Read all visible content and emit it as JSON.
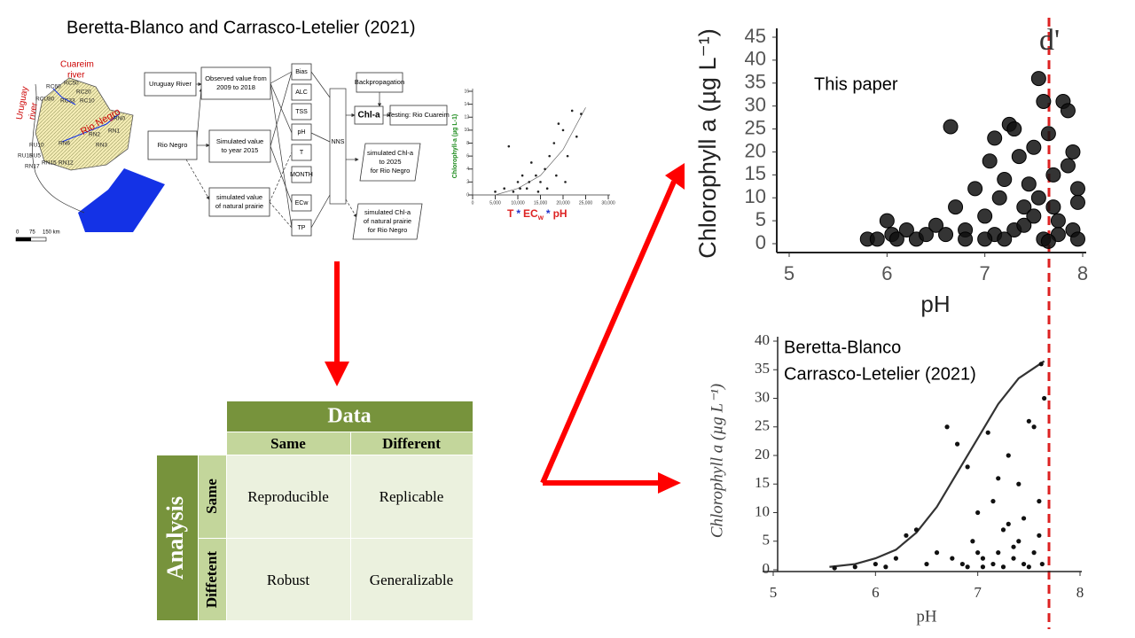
{
  "header": {
    "citation": "Beretta-Blanco and Carrasco-Letelier (2021)"
  },
  "map": {
    "labels": [
      "Cuareim",
      "river",
      "Uruguay",
      "river",
      "Rio Negro",
      "RC60",
      "RC50",
      "RC20",
      "RC10",
      "RC33",
      "RCU80",
      "RN0",
      "RN1",
      "RN2",
      "RN3",
      "RN6",
      "RN12",
      "RN15",
      "RU15",
      "RU10",
      "RU5",
      "RN17"
    ],
    "scale": [
      "0",
      "75",
      "150 km"
    ]
  },
  "flowchart": {
    "nodes": [
      [
        "Uruguay River"
      ],
      [
        "Observed value from",
        "2009 to 2018"
      ],
      [
        "Rio Negro"
      ],
      [
        "Simulated value",
        "to year 2015"
      ],
      [
        "simulated value",
        "of natural prairie"
      ],
      [
        "Backpropagation"
      ],
      [
        "Chl-a"
      ],
      [
        "Testing: Rio Cuareim"
      ],
      [
        "simulated Chl-a",
        "to 2025",
        "for Rio Negro"
      ],
      [
        "simulated Chl-a",
        "of natural prairie",
        "for Rio Negro"
      ]
    ],
    "inputs": [
      "Bias",
      "ALC",
      "TSS",
      "pH",
      "T",
      "MONTH",
      "ECw",
      "TP"
    ],
    "nns": "NNS"
  },
  "mini_chart": {
    "type": "scatter",
    "y_label": "Chlorophyll-a (µg L-1)",
    "x_label": [
      "T",
      "*",
      "EC",
      "w",
      "*",
      "pH"
    ],
    "xlim": [
      0,
      30000
    ],
    "ylim": [
      0,
      16
    ],
    "xticks": [
      0,
      {
        "value": 5000,
        "label": "5,000"
      },
      {
        "value": 10000,
        "label": "10,000"
      },
      {
        "value": 15000,
        "label": "15,000"
      },
      {
        "value": 20000,
        "label": "20,000"
      },
      {
        "value": 25000,
        "label": "25,000"
      },
      {
        "value": 30000,
        "label": "30,000"
      }
    ],
    "yticks": [
      0,
      2,
      4,
      6,
      8,
      10,
      12,
      14,
      16
    ],
    "x": [
      5000,
      7000,
      8000,
      9000,
      10000,
      11000,
      12000,
      13000,
      14000,
      15000,
      16000,
      17000,
      18000,
      19000,
      20000,
      21000,
      22000,
      23000,
      24000,
      10500,
      12500,
      14500,
      16500,
      18500,
      20500
    ],
    "y": [
      0.5,
      1,
      7.5,
      0.5,
      2,
      3,
      1,
      5,
      3,
      2,
      4,
      6,
      8,
      11,
      10,
      6,
      13,
      9,
      12.5,
      1,
      2,
      0.5,
      1,
      3,
      2
    ],
    "curve_x": [
      5000,
      10000,
      15000,
      20000,
      25000
    ],
    "curve_y": [
      0,
      1,
      3,
      7,
      13.5
    ]
  },
  "charts": [
    {
      "type": "scatter",
      "label": "d'",
      "legend": [
        "This paper"
      ],
      "y_label": "Chlorophyll a (µg L⁻¹)",
      "x_label": "pH",
      "xlim": [
        5,
        8
      ],
      "ylim": [
        0,
        45
      ],
      "xticks": [
        5,
        6,
        7,
        8
      ],
      "yticks": [
        0,
        5,
        10,
        15,
        20,
        25,
        30,
        35,
        40,
        45
      ],
      "x": [
        5.8,
        5.9,
        6.0,
        6.05,
        6.1,
        6.2,
        6.3,
        6.4,
        6.5,
        6.6,
        6.65,
        6.7,
        6.8,
        6.9,
        7.0,
        7.05,
        7.1,
        7.15,
        7.2,
        7.25,
        7.3,
        7.35,
        7.4,
        7.45,
        7.5,
        7.55,
        7.6,
        7.65,
        7.7,
        7.75,
        7.8,
        7.85,
        7.9,
        7.95,
        7.7,
        7.5,
        7.3,
        7.1,
        7.6,
        7.9,
        7.85,
        7.95,
        7.2,
        7.4,
        7.0,
        6.8,
        7.75,
        7.55,
        7.65,
        7.95
      ],
      "y": [
        1,
        1,
        5,
        2,
        1,
        3,
        1,
        2,
        4,
        2,
        25.5,
        8,
        3,
        12,
        6,
        18,
        23,
        10,
        14,
        26,
        25,
        19,
        8,
        13,
        21,
        36,
        31,
        24,
        15,
        5,
        31,
        29,
        20,
        12,
        8,
        6,
        3,
        2,
        1,
        3,
        17,
        9,
        1,
        4,
        1,
        1,
        2,
        10,
        0.5,
        1
      ]
    },
    {
      "type": "scatter",
      "legend": [
        "Beretta-Blanco",
        "Carrasco-Letelier (2021)"
      ],
      "y_label": "Chlorophyll a  (µg L⁻¹)",
      "x_label": "pH",
      "xlim": [
        5,
        8
      ],
      "ylim": [
        0,
        40
      ],
      "xticks": [
        5,
        6,
        7,
        8
      ],
      "yticks": [
        0,
        5,
        10,
        15,
        20,
        25,
        30,
        35,
        40
      ],
      "x": [
        5.6,
        5.8,
        6.0,
        6.1,
        6.2,
        6.3,
        6.4,
        6.5,
        6.6,
        6.7,
        6.8,
        6.9,
        6.95,
        7.0,
        7.05,
        7.1,
        7.15,
        7.2,
        7.25,
        7.3,
        7.35,
        7.4,
        7.45,
        7.5,
        7.55,
        7.6,
        7.62,
        7.65,
        7.55,
        7.45,
        7.35,
        7.25,
        7.15,
        7.05,
        6.85,
        6.75,
        7.6,
        7.4,
        7.2,
        7.5,
        7.63,
        7.3,
        7.0,
        6.9
      ],
      "y": [
        0.3,
        0.5,
        1,
        0.5,
        2,
        6,
        7,
        1,
        3,
        25,
        22,
        18,
        5,
        10,
        2,
        24,
        12,
        16,
        7,
        20,
        4,
        15,
        9,
        26,
        25,
        12,
        36,
        30,
        3,
        1,
        2,
        0.5,
        1,
        0.5,
        1,
        2,
        6,
        5,
        3,
        0.5,
        1,
        8,
        3,
        0.5
      ],
      "curve_x": [
        5.55,
        5.8,
        6.0,
        6.2,
        6.4,
        6.6,
        6.8,
        7.0,
        7.2,
        7.4,
        7.65
      ],
      "curve_y": [
        0.5,
        1,
        2,
        3.5,
        6.5,
        11,
        17,
        23,
        29,
        33.5,
        36.5
      ]
    }
  ],
  "table": {
    "data_header": "Data",
    "columns": [
      "Same",
      "Different"
    ],
    "analysis_header": "Analysis",
    "rows": [
      "Same",
      "Diffetent"
    ],
    "cells": [
      [
        "Reproducible",
        "Replicable"
      ],
      [
        "Robust",
        "Generalizable"
      ]
    ]
  }
}
